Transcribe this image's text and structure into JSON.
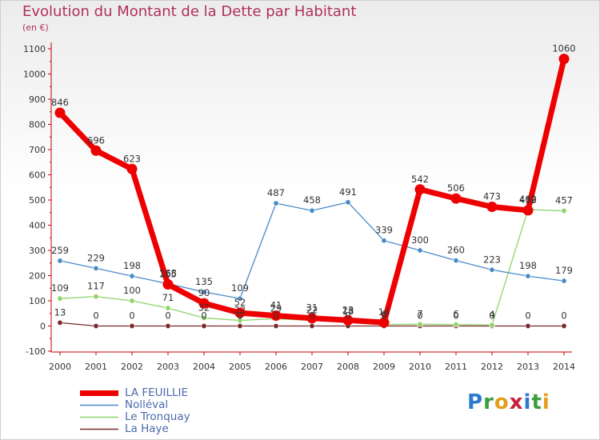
{
  "title": "Evolution du Montant de la Dette par Habitant",
  "unit": "(en €)",
  "logo_text": "Proxiti",
  "chart_data": {
    "type": "line",
    "categories": [
      "2000",
      "2001",
      "2002",
      "2003",
      "2004",
      "2005",
      "2006",
      "2007",
      "2008",
      "2009",
      "2010",
      "2011",
      "2012",
      "2013",
      "2014"
    ],
    "ylim": [
      -100,
      1100
    ],
    "yticks": [
      -100,
      0,
      100,
      200,
      300,
      400,
      500,
      600,
      700,
      800,
      900,
      1000,
      1100
    ],
    "grid": false,
    "legend_position": "bottom-left",
    "series": [
      {
        "name": "La Haye",
        "color": "#7a2a2a",
        "values": [
          13,
          0,
          0,
          0,
          0,
          0,
          0,
          0,
          0,
          0,
          0,
          0,
          0,
          0,
          0
        ],
        "labels": [
          "13",
          "0",
          "0",
          "0",
          "0",
          "0",
          "0",
          "0",
          "0",
          "0",
          "0",
          "0",
          "0",
          "0",
          "0"
        ]
      },
      {
        "name": "Le Tronquay",
        "color": "#8ed46a",
        "values": [
          109,
          117,
          100,
          71,
          32,
          22,
          29,
          22,
          18,
          6,
          7,
          6,
          4,
          462,
          457
        ],
        "labels": [
          "109",
          "117",
          "100",
          "71",
          "32",
          "22",
          "29",
          "22",
          "18",
          "6",
          "7",
          "6",
          "4",
          "462",
          "457"
        ]
      },
      {
        "name": "Nolléval",
        "color": "#4a8ac8",
        "values": [
          259,
          229,
          198,
          168,
          135,
          109,
          487,
          458,
          491,
          339,
          300,
          260,
          223,
          198,
          179
        ],
        "labels": [
          "259",
          "229",
          "198",
          "168",
          "135",
          "109",
          "487",
          "458",
          "491",
          "339",
          "300",
          "260",
          "223",
          "198",
          "179"
        ]
      },
      {
        "name": "LA FEUILLIE",
        "color": "#ee0000",
        "values": [
          846,
          696,
          623,
          165,
          90,
          52,
          41,
          31,
          23,
          14,
          542,
          506,
          473,
          459,
          1060
        ],
        "labels": [
          "846",
          "696",
          "623",
          "165",
          "90",
          "52",
          "41",
          "31",
          "23",
          "14",
          "542",
          "506",
          "473",
          "459",
          "1060"
        ]
      }
    ]
  },
  "legend": [
    {
      "name": "LA FEUILLIE",
      "color": "#ee0000",
      "width": 7
    },
    {
      "name": "Nolléval",
      "color": "#4a8ac8",
      "width": 1.5
    },
    {
      "name": "Le Tronquay",
      "color": "#8ed46a",
      "width": 1.5
    },
    {
      "name": "La Haye",
      "color": "#7a2a2a",
      "width": 1.5
    }
  ]
}
